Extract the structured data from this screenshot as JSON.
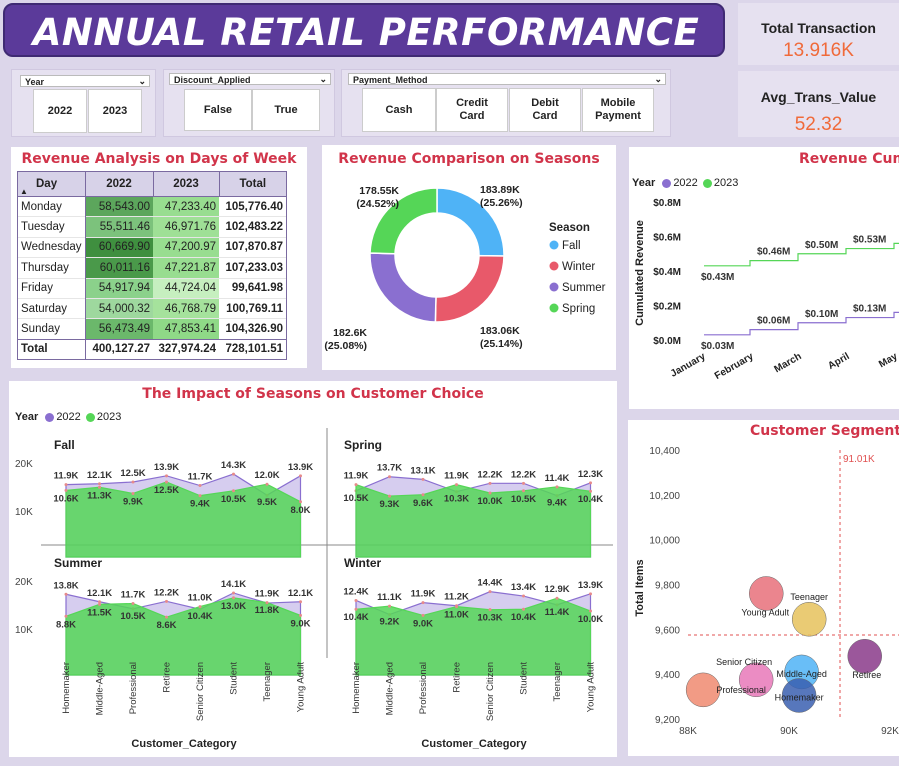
{
  "title": "ANNUAL RETAIL PERFORMANCE",
  "kpis": [
    {
      "label": "Total Transaction",
      "value": "13.916K"
    },
    {
      "label": "Avg_Trans_Value",
      "value": "52.32"
    }
  ],
  "slicers": {
    "year": {
      "label": "Year",
      "options": [
        "2022",
        "2023"
      ]
    },
    "discount": {
      "label": "Discount_Applied",
      "options": [
        "False",
        "True"
      ]
    },
    "payment": {
      "label": "Payment_Method",
      "options": [
        "Cash",
        "Credit Card",
        "Debit Card",
        "Mobile Payment"
      ]
    }
  },
  "revenue_table": {
    "title": "Revenue Analysis on Days of Week",
    "headers": [
      "Day",
      "2022",
      "2023",
      "Total"
    ],
    "rows": [
      [
        "Monday",
        "58,543.00",
        "47,233.40",
        "105,776.40"
      ],
      [
        "Tuesday",
        "55,511.46",
        "46,971.76",
        "102,483.22"
      ],
      [
        "Wednesday",
        "60,669.90",
        "47,200.97",
        "107,870.87"
      ],
      [
        "Thursday",
        "60,011.16",
        "47,221.87",
        "107,233.03"
      ],
      [
        "Friday",
        "54,917.94",
        "44,724.04",
        "99,641.98"
      ],
      [
        "Saturday",
        "54,000.32",
        "46,768.79",
        "100,769.11"
      ],
      [
        "Sunday",
        "56,473.49",
        "47,853.41",
        "104,326.90"
      ]
    ],
    "total": [
      "Total",
      "400,127.27",
      "327,974.24",
      "728,101.51"
    ],
    "shade_2022": [
      "#5ca65c",
      "#7cc27c",
      "#3f8f3f",
      "#4a994a",
      "#8bd18b",
      "#9ed89e",
      "#6bb86b"
    ],
    "shade_2023": [
      "#98dd90",
      "#9fe096",
      "#98dd90",
      "#98dd90",
      "#c6efbf",
      "#a5e29c",
      "#8fd987"
    ]
  },
  "donut": {
    "title": "Revenue Comparison on Seasons",
    "legend_title": "Season",
    "legend": [
      "Fall",
      "Winter",
      "Summer",
      "Spring"
    ],
    "colors": {
      "Fall": "#4fb3f6",
      "Winter": "#e8596a",
      "Summer": "#8a6fd0",
      "Spring": "#55d657"
    },
    "labels": {
      "Fall": [
        "183.89K",
        "(25.26%)"
      ],
      "Winter": [
        "183.06K",
        "(25.14%)"
      ],
      "Summer": [
        "182.6K",
        "(25.08%)"
      ],
      "Spring": [
        "178.55K",
        "(24.52%)"
      ]
    }
  },
  "cumulative": {
    "title": "Revenue Cumula",
    "legend_label": "Year",
    "years": [
      "2022",
      "2023"
    ],
    "ylabel": "Cumulated Revenue",
    "yticks": [
      "$0.0M",
      "$0.2M",
      "$0.4M",
      "$0.6M",
      "$0.8M"
    ],
    "months": [
      "January",
      "February",
      "March",
      "April",
      "May"
    ],
    "labels_2023": [
      "$0.43M",
      "$0.46M",
      "$0.50M",
      "$0.53M",
      "$0.5"
    ],
    "labels_2022": [
      "$0.03M",
      "$0.06M",
      "$0.10M",
      "$0.13M",
      "$0.1"
    ]
  },
  "chart_data": [
    {
      "type": "area",
      "title": "The Impact of Seasons on Customer Choice",
      "legend_label": "Year",
      "categories": [
        "Homemaker",
        "Middle-Aged",
        "Professional",
        "Retiree",
        "Senior Citizen",
        "Student",
        "Teenager",
        "Young Adult"
      ],
      "xlabel": "Customer_Category",
      "yticks": [
        "20K",
        "10K"
      ],
      "panels": [
        {
          "name": "Fall",
          "series": [
            {
              "name": "2022",
              "values": [
                11.9,
                12.1,
                12.5,
                13.9,
                11.7,
                14.3,
                9.5,
                13.9
              ],
              "labels": [
                "11.9K",
                "12.1K",
                "12.5K",
                "13.9K",
                "11.7K",
                "14.3K",
                "9.5K",
                "13.9K"
              ]
            },
            {
              "name": "2023",
              "values": [
                10.6,
                11.3,
                9.9,
                12.5,
                9.4,
                10.5,
                12.0,
                8.0
              ],
              "labels": [
                "10.6K",
                "11.3K",
                "9.9K",
                "12.5K",
                "9.4K",
                "10.5K",
                "12.0K",
                "8.0K"
              ]
            }
          ]
        },
        {
          "name": "Spring",
          "series": [
            {
              "name": "2022",
              "values": [
                10.5,
                13.7,
                13.1,
                10.3,
                12.2,
                12.2,
                9.4,
                12.3
              ],
              "labels": [
                "10.5K",
                "13.7K",
                "13.1K",
                "10.3K",
                "12.2K",
                "12.2K",
                "9.4K",
                "12.3K"
              ]
            },
            {
              "name": "2023",
              "values": [
                11.9,
                9.3,
                9.6,
                11.9,
                10.0,
                10.5,
                11.4,
                10.4
              ],
              "labels": [
                "11.9K",
                "9.3K",
                "9.6K",
                "11.9K",
                "10.0K",
                "10.5K",
                "11.4K",
                "10.4K"
              ]
            }
          ]
        },
        {
          "name": "Summer",
          "series": [
            {
              "name": "2022",
              "values": [
                13.8,
                12.1,
                10.5,
                12.2,
                10.4,
                14.1,
                11.8,
                12.1
              ],
              "labels": [
                "13.8K",
                "12.1K",
                "10.5K",
                "12.2K",
                "10.4K",
                "14.1K",
                "11.8K",
                "12.1K"
              ]
            },
            {
              "name": "2023",
              "values": [
                8.8,
                11.5,
                11.7,
                8.6,
                11.0,
                13.0,
                11.9,
                9.0
              ],
              "labels": [
                "8.8K",
                "11.5K",
                "11.7K",
                "8.6K",
                "11.0K",
                "13.0K",
                "11.9K",
                "9.0K"
              ]
            }
          ]
        },
        {
          "name": "Winter",
          "series": [
            {
              "name": "2022",
              "values": [
                12.4,
                9.2,
                11.9,
                11.2,
                14.4,
                13.4,
                11.4,
                13.9
              ],
              "labels": [
                "12.4K",
                "9.2K",
                "11.9K",
                "11.2K",
                "14.4K",
                "13.4K",
                "11.4K",
                "13.9K"
              ]
            },
            {
              "name": "2023",
              "values": [
                10.4,
                11.1,
                9.0,
                11.0,
                10.3,
                10.4,
                12.9,
                10.0
              ],
              "labels": [
                "10.4K",
                "11.1K",
                "9.0K",
                "11.0K",
                "10.3K",
                "10.4K",
                "12.9K",
                "10.0K"
              ]
            }
          ]
        }
      ],
      "colors": {
        "2022": "#8a6fd0",
        "2023": "#55d657"
      }
    },
    {
      "type": "scatter",
      "title": "Customer Segmentation",
      "ylabel": "Total Items",
      "xticks": [
        "88K",
        "90K",
        "92K"
      ],
      "yticks": [
        "9,200",
        "9,400",
        "9,600",
        "9,800",
        "10,000",
        "10,200",
        "10,400"
      ],
      "xlim": [
        88,
        92
      ],
      "ylim": [
        9200,
        10400
      ],
      "ref_label": "91.01K",
      "ref_x": 91.01,
      "ref_y": 9575,
      "points": [
        {
          "name": "Young Adult",
          "x": 89.55,
          "y": 9760,
          "color": "#e8707a"
        },
        {
          "name": "Teenager",
          "x": 90.4,
          "y": 9645,
          "color": "#e6c25c"
        },
        {
          "name": "Senior Citizen",
          "x": 89.35,
          "y": 9375,
          "color": "#e878b8"
        },
        {
          "name": "Middle-Aged",
          "x": 90.25,
          "y": 9410,
          "color": "#4fb3f6"
        },
        {
          "name": "Homemaker",
          "x": 90.2,
          "y": 9305,
          "color": "#3a5fb0"
        },
        {
          "name": "Professional",
          "x": 88.3,
          "y": 9330,
          "color": "#f08a70"
        },
        {
          "name": "Retiree",
          "x": 91.5,
          "y": 9480,
          "color": "#8a3a8a"
        }
      ]
    }
  ]
}
